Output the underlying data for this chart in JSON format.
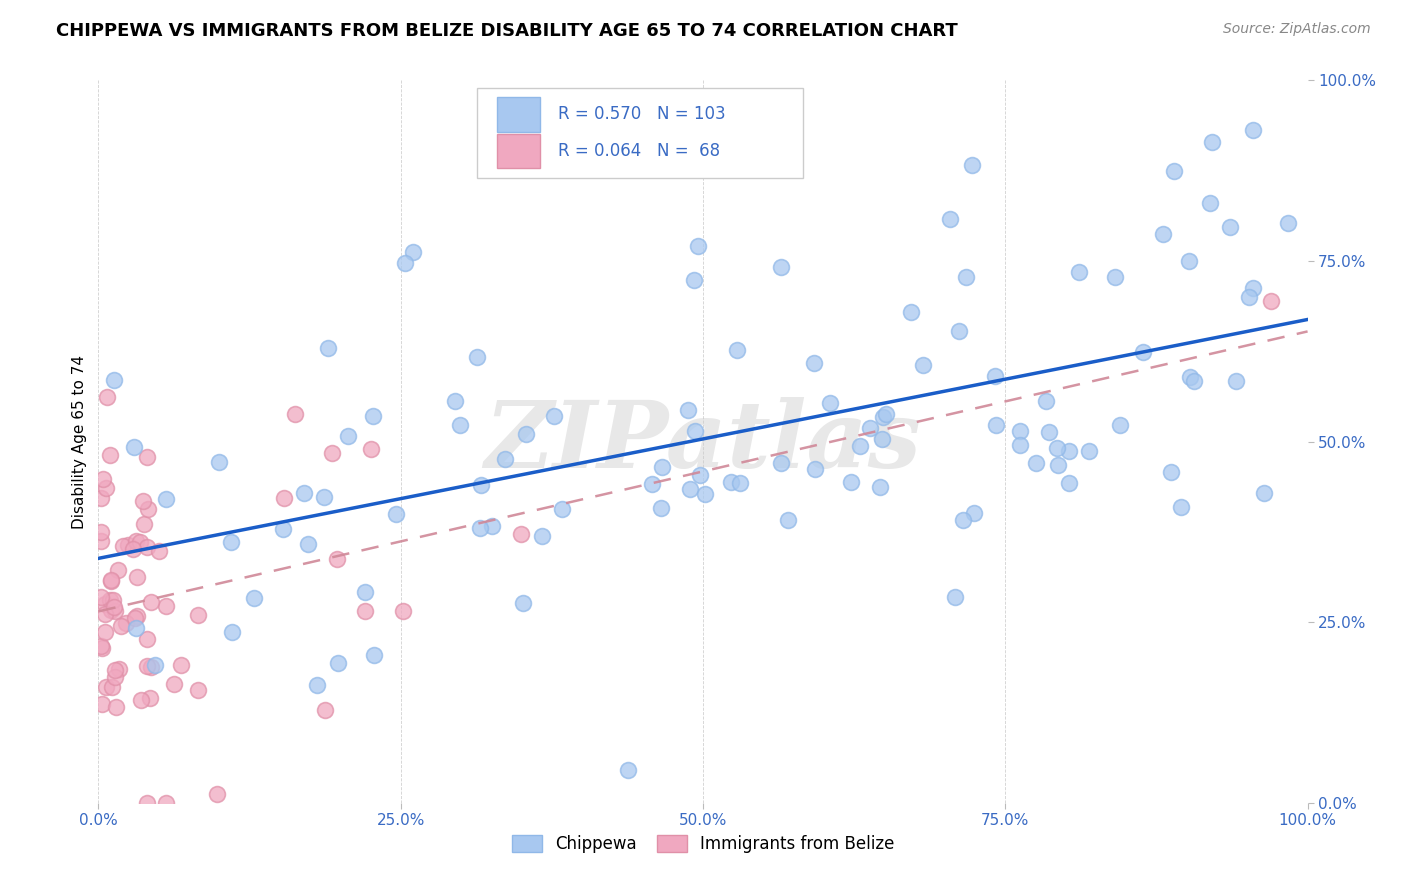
{
  "title": "CHIPPEWA VS IMMIGRANTS FROM BELIZE DISABILITY AGE 65 TO 74 CORRELATION CHART",
  "source": "Source: ZipAtlas.com",
  "ylabel": "Disability Age 65 to 74",
  "watermark": "ZIPatlas",
  "chippewa_color": "#a8c8f0",
  "chippewa_edge_color": "#90b8e8",
  "belize_color": "#f0a8c0",
  "belize_edge_color": "#e090a8",
  "chippewa_line_color": "#1a5dc8",
  "belize_line_color": "#d08898",
  "chippewa_R": 0.57,
  "chippewa_N": 103,
  "belize_R": 0.064,
  "belize_N": 68,
  "xmin": 0.0,
  "xmax": 1.0,
  "ymin": 0.0,
  "ymax": 1.0,
  "tick_vals": [
    0.0,
    0.25,
    0.5,
    0.75,
    1.0
  ],
  "tick_labels": [
    "0.0%",
    "25.0%",
    "50.0%",
    "75.0%",
    "100.0%"
  ],
  "legend_R1": "0.570",
  "legend_N1": "103",
  "legend_R2": "0.064",
  "legend_N2": "68",
  "legend_text_color": "#3a6bc4",
  "tick_color": "#3a6bc4",
  "title_fontsize": 13,
  "source_fontsize": 10,
  "axis_label_fontsize": 11,
  "tick_fontsize": 11
}
